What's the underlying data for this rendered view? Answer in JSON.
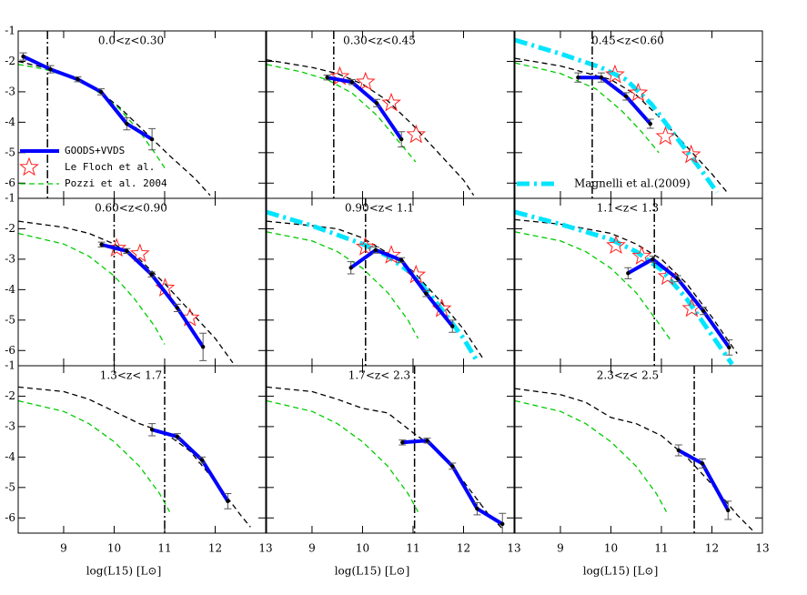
{
  "chart_data": {
    "type": "line",
    "xlabel": "log(L15) [L⊙]",
    "xlim": [
      8.1,
      13
    ],
    "ylim": [
      -6.5,
      -1
    ],
    "xticks": [
      9,
      10,
      11,
      12,
      13
    ],
    "yticks": [
      -1,
      -2,
      -3,
      -4,
      -5,
      -6
    ],
    "colors": {
      "data": "#0000ff",
      "model": "#000000",
      "pozzi": "#00cc00",
      "lefloch": "#ff2020",
      "magnelli": "#00e5ff"
    },
    "panels": [
      {
        "title": "0.0<z<0.30",
        "limit": 8.68,
        "data": {
          "x": [
            8.2,
            8.74,
            9.28,
            9.74,
            10.25,
            10.75
          ],
          "values": [
            -1.84,
            -2.26,
            -2.59,
            -3.0,
            -4.05,
            -4.56
          ],
          "errors": [
            0.12,
            0.12,
            0.08,
            0.1,
            0.2,
            0.35
          ]
        },
        "model": {
          "x": [
            8.1,
            8.6,
            9.1,
            9.6,
            10.1,
            10.6,
            11.1,
            11.6,
            11.9
          ],
          "values": [
            -2.0,
            -2.2,
            -2.45,
            -2.85,
            -3.5,
            -4.3,
            -5.1,
            -5.85,
            -6.4
          ]
        },
        "pozzi": {
          "x": [
            8.1,
            8.6,
            9.1,
            9.6,
            10.1,
            10.5,
            10.8,
            11.0
          ],
          "values": [
            -2.1,
            -2.25,
            -2.5,
            -2.9,
            -3.55,
            -4.3,
            -5.0,
            -5.5
          ]
        },
        "legend": [
          {
            "label": "GOODS+VVDS",
            "kind": "data"
          },
          {
            "label": "Le Floch et al.",
            "kind": "lefloch"
          },
          {
            "label": "Pozzi et al. 2004",
            "kind": "pozzi"
          }
        ]
      },
      {
        "title": "0.30<z<0.45",
        "limit": 9.43,
        "data": {
          "x": [
            9.3,
            9.79,
            10.28,
            10.77
          ],
          "values": [
            -2.53,
            -2.68,
            -3.37,
            -4.56
          ],
          "errors": [
            0.08,
            0.08,
            0.12,
            0.25
          ]
        },
        "lefloch": {
          "x": [
            9.55,
            10.06,
            10.57,
            11.06
          ],
          "values": [
            -2.5,
            -2.68,
            -3.37,
            -4.41
          ]
        },
        "model": {
          "x": [
            8.1,
            9.0,
            9.5,
            10.0,
            10.5,
            11.0,
            11.5,
            12.0,
            12.2
          ],
          "values": [
            -1.95,
            -2.2,
            -2.4,
            -2.75,
            -3.3,
            -4.1,
            -5.0,
            -5.9,
            -6.4
          ]
        },
        "pozzi": {
          "x": [
            8.1,
            8.8,
            9.3,
            9.8,
            10.3,
            10.7,
            11.05
          ],
          "values": [
            -2.1,
            -2.35,
            -2.6,
            -3.05,
            -3.8,
            -4.6,
            -5.3
          ]
        }
      },
      {
        "title": "0.45<z<0.60",
        "limit": 9.63,
        "data": {
          "x": [
            9.35,
            9.81,
            10.3,
            10.78
          ],
          "values": [
            -2.53,
            -2.53,
            -3.15,
            -4.05
          ],
          "errors": [
            0.15,
            0.15,
            0.12,
            0.15
          ]
        },
        "lefloch": {
          "x": [
            10.08,
            10.54,
            11.08,
            11.59
          ],
          "values": [
            -2.44,
            -3.04,
            -4.47,
            -5.07
          ]
        },
        "magnelli": {
          "x": [
            8.1,
            9.0,
            9.8,
            10.3,
            10.8,
            11.3,
            11.8,
            12.1
          ],
          "values": [
            -1.3,
            -1.75,
            -2.2,
            -2.6,
            -3.4,
            -4.5,
            -5.6,
            -6.3
          ]
        },
        "model": {
          "x": [
            8.1,
            9.0,
            10.0,
            10.5,
            11.0,
            11.5,
            12.0,
            12.3
          ],
          "values": [
            -1.9,
            -2.15,
            -2.6,
            -3.1,
            -3.9,
            -4.8,
            -5.7,
            -6.3
          ]
        },
        "pozzi": {
          "x": [
            8.1,
            9.0,
            9.7,
            10.2,
            10.6,
            10.95
          ],
          "values": [
            -2.05,
            -2.4,
            -2.9,
            -3.6,
            -4.3,
            -5.0
          ]
        },
        "legend": [
          {
            "label": "Magnelli et al.(2009)",
            "kind": "magnelli"
          }
        ]
      },
      {
        "title": "0.60<z<0.90",
        "limit": 10.0,
        "data": {
          "x": [
            9.75,
            10.25,
            10.74,
            11.25,
            11.76
          ],
          "values": [
            -2.52,
            -2.73,
            -3.5,
            -4.6,
            -5.88
          ],
          "errors": [
            0.08,
            0.08,
            0.08,
            0.12,
            0.45
          ]
        },
        "lefloch": {
          "x": [
            10.05,
            10.51,
            11.01,
            11.5
          ],
          "values": [
            -2.64,
            -2.82,
            -3.95,
            -4.93
          ]
        },
        "model": {
          "x": [
            8.1,
            9.0,
            9.5,
            10.0,
            10.5,
            11.0,
            11.5,
            12.0,
            12.35
          ],
          "values": [
            -1.75,
            -1.95,
            -2.15,
            -2.5,
            -3.0,
            -3.8,
            -4.7,
            -5.6,
            -6.4
          ]
        },
        "pozzi": {
          "x": [
            8.1,
            9.0,
            9.5,
            10.0,
            10.4,
            10.8,
            11.0
          ],
          "values": [
            -2.15,
            -2.5,
            -2.9,
            -3.55,
            -4.3,
            -5.2,
            -5.8
          ]
        }
      },
      {
        "title": "0.90<z< 1.1",
        "limit": 10.06,
        "data": {
          "x": [
            9.77,
            10.26,
            10.77,
            11.26,
            11.78
          ],
          "values": [
            -3.28,
            -2.7,
            -3.03,
            -4.13,
            -5.2
          ],
          "errors": [
            0.2,
            0.1,
            0.08,
            0.1,
            0.2
          ]
        },
        "lefloch": {
          "x": [
            10.06,
            10.57,
            11.06,
            11.57
          ],
          "values": [
            -2.6,
            -2.87,
            -3.52,
            -4.63
          ]
        },
        "magnelli": {
          "x": [
            8.1,
            9.0,
            10.0,
            10.5,
            11.0,
            11.5,
            12.0,
            12.25
          ],
          "values": [
            -1.45,
            -1.9,
            -2.5,
            -2.9,
            -3.5,
            -4.5,
            -5.6,
            -6.3
          ]
        },
        "model": {
          "x": [
            8.1,
            9.0,
            9.5,
            10.0,
            10.5,
            11.0,
            11.5,
            12.0,
            12.4
          ],
          "values": [
            -1.75,
            -1.9,
            -2.0,
            -2.3,
            -2.8,
            -3.4,
            -4.3,
            -5.3,
            -6.3
          ]
        },
        "pozzi": {
          "x": [
            8.1,
            9.0,
            9.5,
            10.0,
            10.5,
            10.9,
            11.1
          ],
          "values": [
            -2.1,
            -2.4,
            -2.75,
            -3.3,
            -4.1,
            -5.0,
            -5.6
          ]
        }
      },
      {
        "title": "1.1<z< 1.3",
        "limit": 10.86,
        "data": {
          "x": [
            10.34,
            10.83,
            11.32,
            11.83,
            12.34
          ],
          "values": [
            -3.46,
            -3.0,
            -3.64,
            -4.7,
            -5.9
          ],
          "errors": [
            0.18,
            0.1,
            0.1,
            0.12,
            0.25
          ]
        },
        "lefloch": {
          "x": [
            10.1,
            10.61,
            11.12,
            11.6
          ],
          "values": [
            -2.55,
            -2.9,
            -3.57,
            -4.62
          ]
        },
        "magnelli": {
          "x": [
            8.1,
            9.0,
            10.0,
            10.5,
            11.0,
            11.5,
            12.0,
            12.4
          ],
          "values": [
            -1.45,
            -1.85,
            -2.35,
            -2.75,
            -3.35,
            -4.3,
            -5.5,
            -6.45
          ]
        },
        "model": {
          "x": [
            8.1,
            9.0,
            10.0,
            10.5,
            11.0,
            11.5,
            12.0,
            12.5
          ],
          "values": [
            -1.7,
            -1.85,
            -2.15,
            -2.5,
            -3.0,
            -3.8,
            -4.9,
            -6.1
          ]
        },
        "pozzi": {
          "x": [
            8.1,
            9.0,
            9.5,
            10.0,
            10.5,
            10.9,
            11.2
          ],
          "values": [
            -2.1,
            -2.4,
            -2.75,
            -3.3,
            -4.1,
            -5.0,
            -5.7
          ]
        }
      },
      {
        "title": "1.3<z< 1.7",
        "limit": 11.0,
        "data": {
          "x": [
            10.75,
            11.25,
            11.74,
            12.25
          ],
          "values": [
            -3.1,
            -3.33,
            -4.1,
            -5.45
          ],
          "errors": [
            0.2,
            0.1,
            0.1,
            0.25
          ]
        },
        "model": {
          "x": [
            8.1,
            9.0,
            9.5,
            10.0,
            10.5,
            11.0,
            11.5,
            12.0,
            12.5,
            12.7
          ],
          "values": [
            -1.7,
            -1.85,
            -2.1,
            -2.5,
            -2.9,
            -3.2,
            -3.8,
            -4.8,
            -5.9,
            -6.3
          ]
        },
        "pozzi": {
          "x": [
            8.1,
            9.0,
            9.5,
            10.0,
            10.5,
            10.9,
            11.1
          ],
          "values": [
            -2.15,
            -2.5,
            -2.9,
            -3.5,
            -4.3,
            -5.2,
            -5.8
          ]
        }
      },
      {
        "title": "1.7<z< 2.3",
        "limit": 11.03,
        "data": {
          "x": [
            10.79,
            11.28,
            11.78,
            12.27,
            12.77
          ],
          "values": [
            -3.52,
            -3.46,
            -4.3,
            -5.7,
            -6.2
          ],
          "errors": [
            0.08,
            0.08,
            0.1,
            0.2,
            0.35
          ]
        },
        "model": {
          "x": [
            8.1,
            9.0,
            9.5,
            10.0,
            10.5,
            11.0,
            11.5,
            12.0,
            12.5,
            12.8
          ],
          "values": [
            -1.7,
            -1.85,
            -2.1,
            -2.4,
            -2.55,
            -3.2,
            -3.8,
            -4.8,
            -5.9,
            -6.4
          ]
        },
        "pozzi": {
          "x": [
            8.1,
            9.0,
            9.5,
            10.0,
            10.5,
            10.9,
            11.1
          ],
          "values": [
            -2.15,
            -2.5,
            -2.9,
            -3.5,
            -4.3,
            -5.2,
            -5.8
          ]
        }
      },
      {
        "title": "2.3<z< 2.5",
        "limit": 11.65,
        "data": {
          "x": [
            11.34,
            11.81,
            12.32
          ],
          "values": [
            -3.78,
            -4.21,
            -5.75
          ],
          "errors": [
            0.18,
            0.15,
            0.3
          ]
        },
        "model": {
          "x": [
            8.1,
            9.0,
            9.5,
            10.0,
            10.5,
            11.0,
            11.5,
            12.0,
            12.5,
            12.8
          ],
          "values": [
            -1.75,
            -1.95,
            -2.2,
            -2.7,
            -2.9,
            -3.3,
            -4.0,
            -4.9,
            -5.9,
            -6.4
          ]
        },
        "pozzi": {
          "x": [
            8.1,
            9.0,
            9.5,
            10.0,
            10.5,
            10.9,
            11.1
          ],
          "values": [
            -2.15,
            -2.5,
            -2.9,
            -3.5,
            -4.3,
            -5.2,
            -5.8
          ]
        }
      }
    ]
  }
}
